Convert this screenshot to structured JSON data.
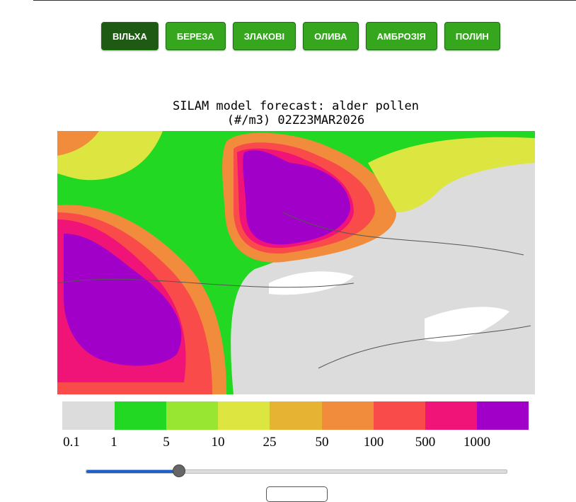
{
  "tabs": [
    "ВІЛЬХА",
    "БЕРЕЗА",
    "ЗЛАКОВІ",
    "ОЛИВА",
    "АМБРОЗІЯ",
    "ПОЛИН"
  ],
  "active_tab": "ВІЛЬХА",
  "map": {
    "title": [
      "SILAM model forecast: alder pollen",
      "(#/m3) 02Z23MAR2026"
    ],
    "legend_labels": [
      "0.1",
      "1",
      "5",
      "10",
      "25",
      "50",
      "100",
      "500",
      "1000"
    ]
  }
}
